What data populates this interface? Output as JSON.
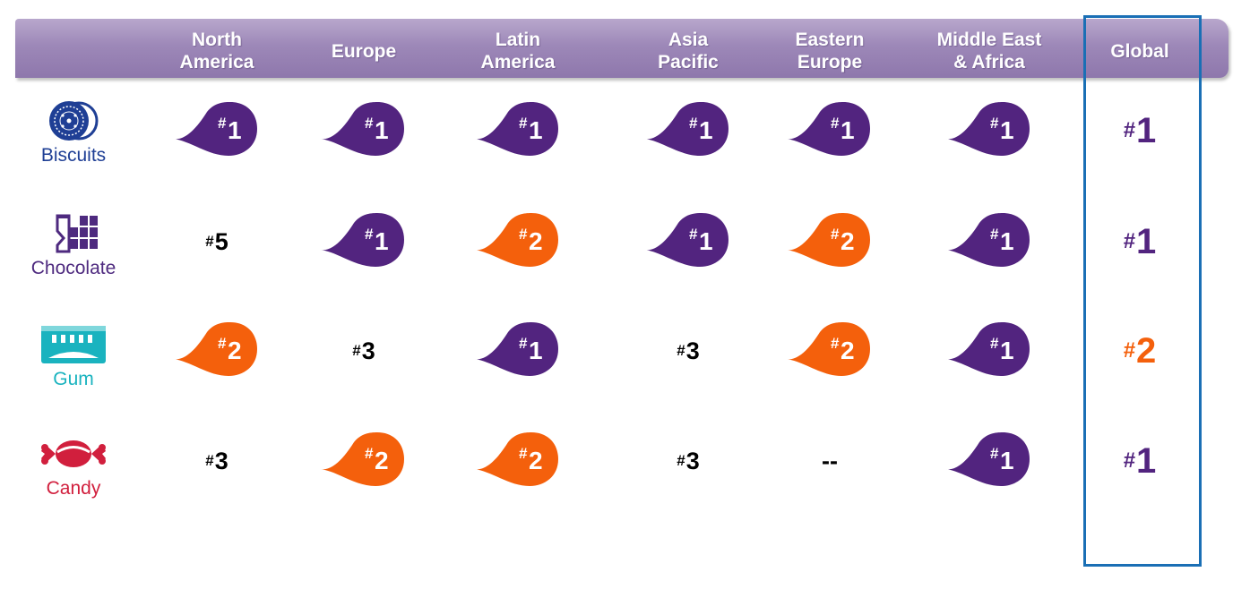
{
  "header": {
    "columns": [
      {
        "key": "na",
        "label": "North\nAmerica"
      },
      {
        "key": "eu",
        "label": "Europe"
      },
      {
        "key": "la",
        "label": "Latin\nAmerica"
      },
      {
        "key": "ap",
        "label": "Asia\nPacific"
      },
      {
        "key": "ee",
        "label": "Eastern\nEurope"
      },
      {
        "key": "mea",
        "label": "Middle East\n& Africa"
      },
      {
        "key": "global",
        "label": "Global"
      }
    ]
  },
  "colors": {
    "purple": "#52247f",
    "orange": "#f4600c",
    "header_band": "#9d88b8",
    "global_border": "#1a6fb5",
    "biscuits": "#1f3f95",
    "chocolate": "#4e2a7f",
    "gum": "#1ab3bf",
    "candy": "#d11f3d"
  },
  "chart_data": {
    "type": "table",
    "columns": [
      "North America",
      "Europe",
      "Latin America",
      "Asia Pacific",
      "Eastern Europe",
      "Middle East & Africa",
      "Global"
    ],
    "rows": [
      {
        "category": "Biscuits",
        "icon": "biscuit-icon",
        "color_key": "biscuits",
        "cells": [
          {
            "rank": "1",
            "style": "purple"
          },
          {
            "rank": "1",
            "style": "purple"
          },
          {
            "rank": "1",
            "style": "purple"
          },
          {
            "rank": "1",
            "style": "purple"
          },
          {
            "rank": "1",
            "style": "purple"
          },
          {
            "rank": "1",
            "style": "purple"
          },
          {
            "rank": "1",
            "style": "global-purple"
          }
        ]
      },
      {
        "category": "Chocolate",
        "icon": "chocolate-bar-icon",
        "color_key": "chocolate",
        "cells": [
          {
            "rank": "5",
            "style": "plain"
          },
          {
            "rank": "1",
            "style": "purple"
          },
          {
            "rank": "2",
            "style": "orange"
          },
          {
            "rank": "1",
            "style": "purple"
          },
          {
            "rank": "2",
            "style": "orange"
          },
          {
            "rank": "1",
            "style": "purple"
          },
          {
            "rank": "1",
            "style": "global-purple"
          }
        ]
      },
      {
        "category": "Gum",
        "icon": "gum-pack-icon",
        "color_key": "gum",
        "cells": [
          {
            "rank": "2",
            "style": "orange"
          },
          {
            "rank": "3",
            "style": "plain"
          },
          {
            "rank": "1",
            "style": "purple"
          },
          {
            "rank": "3",
            "style": "plain"
          },
          {
            "rank": "2",
            "style": "orange"
          },
          {
            "rank": "1",
            "style": "purple"
          },
          {
            "rank": "2",
            "style": "global-orange"
          }
        ]
      },
      {
        "category": "Candy",
        "icon": "wrapped-candy-icon",
        "color_key": "candy",
        "cells": [
          {
            "rank": "3",
            "style": "plain"
          },
          {
            "rank": "2",
            "style": "orange"
          },
          {
            "rank": "2",
            "style": "orange"
          },
          {
            "rank": "3",
            "style": "plain"
          },
          {
            "rank": "--",
            "style": "dash"
          },
          {
            "rank": "1",
            "style": "purple"
          },
          {
            "rank": "1",
            "style": "global-purple"
          }
        ]
      }
    ]
  }
}
